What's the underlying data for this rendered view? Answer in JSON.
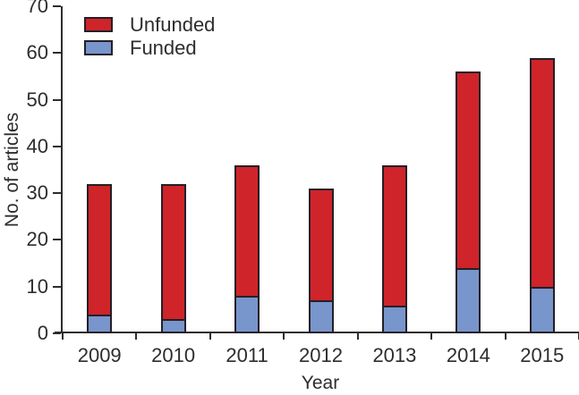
{
  "figure": {
    "background": "#ffffff"
  },
  "chart_data": {
    "type": "bar",
    "stacked": true,
    "title": "",
    "xlabel": "Year",
    "ylabel": "No. of articles",
    "categories": [
      "2009",
      "2010",
      "2011",
      "2012",
      "2013",
      "2014",
      "2015"
    ],
    "series": [
      {
        "name": "Funded",
        "color": "#7895cc",
        "values": [
          4,
          3,
          8,
          7,
          6,
          14,
          10
        ]
      },
      {
        "name": "Unfunded",
        "color": "#cf2429",
        "values": [
          28,
          29,
          28,
          24,
          30,
          42,
          49
        ]
      }
    ],
    "stack_totals": [
      32,
      32,
      36,
      31,
      36,
      56,
      59
    ],
    "ylim": [
      0,
      70
    ],
    "ytick_step": 10,
    "yticks": [
      "0",
      "10",
      "20",
      "30",
      "40",
      "50",
      "60",
      "70"
    ],
    "grid": false,
    "legend_position": "top-left",
    "legend_order": [
      "Unfunded",
      "Funded"
    ],
    "bar_border_color": "#241f26",
    "axis_color": "#2e2d2c",
    "text_color": "#2e2d2c"
  }
}
